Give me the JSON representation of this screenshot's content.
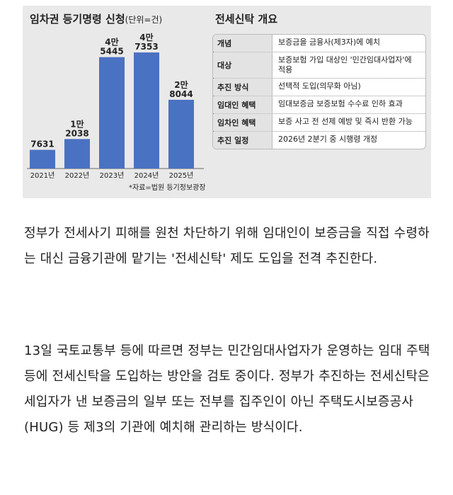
{
  "infographic": {
    "chart_title": "임차권 등기명령 신청",
    "chart_unit": "(단위=건)",
    "source": "*자료=법원 등기정보광장",
    "table_title": "전세신탁 개요",
    "table_rows": [
      {
        "key": "개념",
        "value": "보증금을 금융사(제3자)에 예치"
      },
      {
        "key": "대상",
        "value": "보증보험 가입 대상인 '민간임대사업자'에 적용"
      },
      {
        "key": "추진 방식",
        "value": "선택적 도입(의무화 아님)"
      },
      {
        "key": "임대인 혜택",
        "value": "임대보증금 보증보험 수수료 인하 효과"
      },
      {
        "key": "임차인 혜택",
        "value": "보증 사고 전 선제 예방 및 즉시 반환 가능"
      },
      {
        "key": "추진 일정",
        "value": "2026년 2분기 중 시행령 개정"
      }
    ]
  },
  "chart_data": {
    "type": "bar",
    "title": "임차권 등기명령 신청",
    "categories": [
      "2021년",
      "2022년",
      "2023년",
      "2024년",
      "2025년"
    ],
    "values": [
      7631,
      12038,
      45445,
      47353,
      28044
    ],
    "value_labels": [
      {
        "top": "",
        "bottom": "7631"
      },
      {
        "top": "1만",
        "bottom": "2038"
      },
      {
        "top": "4만",
        "bottom": "5445"
      },
      {
        "top": "4만",
        "bottom": "7353"
      },
      {
        "top": "2만",
        "bottom": "8044"
      }
    ],
    "ylim": [
      0,
      52000
    ],
    "color": "#4a72c2"
  },
  "article": {
    "paragraph1": "정부가 전세사기 피해를 원천 차단하기 위해 임대인이 보증금을 직접 수령하는 대신 금융기관에 맡기는 '전세신탁' 제도 도입을 전격 추진한다.",
    "paragraph2": "13일 국토교통부 등에 따르면 정부는 민간임대사업자가 운영하는 임대 주택 등에 전세신탁을 도입하는 방안을 검토 중이다. 정부가 추진하는 전세신탁은 세입자가 낸 보증금의 일부 또는 전부를 집주인이 아닌 주택도시보증공사(HUG) 등 제3의 기관에 예치해 관리하는 방식이다."
  }
}
